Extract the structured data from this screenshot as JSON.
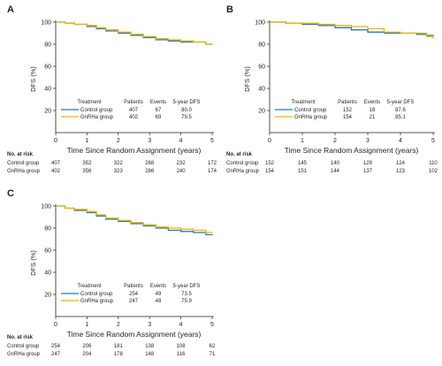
{
  "colors": {
    "control": "#2e75b6",
    "gnrha": "#e6b800",
    "axis": "#231f20"
  },
  "chart_data": [
    {
      "panel": "A",
      "type": "line",
      "xlabel": "Time Since Random Assignment (years)",
      "ylabel": "DFS (%)",
      "xlim": [
        0,
        5
      ],
      "ylim": [
        0,
        100
      ],
      "xticks": [
        "0",
        "1",
        "2",
        "3",
        "4",
        "5"
      ],
      "yticks": [
        "20",
        "40",
        "60",
        "80",
        "100"
      ],
      "legend": {
        "headers": [
          "Treatment",
          "Patients",
          "Events",
          "5-year DFS"
        ],
        "rows": [
          {
            "group": "Control group",
            "patients": "407",
            "events": "67",
            "dfs": "80.0"
          },
          {
            "group": "GnRHa group",
            "patients": "402",
            "events": "69",
            "dfs": "79.5"
          }
        ]
      },
      "series": [
        {
          "name": "Control group",
          "x": [
            0,
            0.3,
            0.6,
            1.0,
            1.3,
            1.6,
            2.0,
            2.4,
            2.8,
            3.2,
            3.6,
            4.0,
            4.4,
            4.8,
            5.0
          ],
          "y": [
            100,
            99,
            98,
            96,
            94,
            92,
            90,
            88,
            86,
            84,
            83,
            82,
            82,
            80,
            80
          ]
        },
        {
          "name": "GnRHa group",
          "x": [
            0,
            0.3,
            0.6,
            1.0,
            1.3,
            1.6,
            2.0,
            2.4,
            2.8,
            3.2,
            3.6,
            4.0,
            4.4,
            4.8,
            5.0
          ],
          "y": [
            100,
            99,
            98,
            97,
            95,
            93,
            91,
            89,
            87,
            85,
            84,
            83,
            82,
            80,
            79.5
          ]
        }
      ],
      "risk": {
        "title": "No. at risk",
        "rows": [
          {
            "label": "Control group",
            "values": [
              "407",
              "352",
              "322",
              "268",
              "232",
              "172"
            ]
          },
          {
            "label": "GnRHa group",
            "values": [
              "402",
              "356",
              "323",
              "286",
              "240",
              "174"
            ]
          }
        ]
      }
    },
    {
      "panel": "B",
      "type": "line",
      "xlabel": "Time Since Random Assignment (years)",
      "ylabel": "DFS (%)",
      "xlim": [
        0,
        5
      ],
      "ylim": [
        0,
        100
      ],
      "xticks": [
        "0",
        "1",
        "2",
        "3",
        "4",
        "5"
      ],
      "yticks": [
        "20",
        "40",
        "60",
        "80",
        "100"
      ],
      "legend": {
        "headers": [
          "Treatment",
          "Patients",
          "Events",
          "5-year DFS"
        ],
        "rows": [
          {
            "group": "Control group",
            "patients": "152",
            "events": "18",
            "dfs": "87.6"
          },
          {
            "group": "GnRHa group",
            "patients": "154",
            "events": "21",
            "dfs": "85.1"
          }
        ]
      },
      "series": [
        {
          "name": "Control group",
          "x": [
            0,
            0.5,
            1.0,
            1.5,
            2.0,
            2.5,
            3.0,
            3.5,
            4.0,
            4.5,
            4.8,
            5.0
          ],
          "y": [
            100,
            99,
            98,
            97,
            95,
            93,
            91,
            90,
            90,
            89,
            88,
            87.6
          ]
        },
        {
          "name": "GnRHa group",
          "x": [
            0,
            0.5,
            1.0,
            1.5,
            2.0,
            2.5,
            3.0,
            3.5,
            4.0,
            4.5,
            4.8,
            5.0
          ],
          "y": [
            100,
            99,
            99,
            98,
            97,
            96,
            94,
            91,
            90,
            90,
            87,
            85.1
          ]
        }
      ],
      "risk": {
        "title": "No. at risk",
        "rows": [
          {
            "label": "Control group",
            "values": [
              "152",
              "145",
              "140",
              "129",
              "124",
              "110"
            ]
          },
          {
            "label": "GnRHa group",
            "values": [
              "154",
              "151",
              "144",
              "137",
              "123",
              "102"
            ]
          }
        ]
      }
    },
    {
      "panel": "C",
      "type": "line",
      "xlabel": "Time Since Random Assignment (years)",
      "ylabel": "DFS (%)",
      "xlim": [
        0,
        5
      ],
      "ylim": [
        0,
        100
      ],
      "xticks": [
        "0",
        "1",
        "2",
        "3",
        "4",
        "5"
      ],
      "yticks": [
        "20",
        "40",
        "60",
        "80",
        "100"
      ],
      "legend": {
        "headers": [
          "Treatment",
          "Patients",
          "Events",
          "5-year DFS"
        ],
        "rows": [
          {
            "group": "Control group",
            "patients": "254",
            "events": "49",
            "dfs": "73.5"
          },
          {
            "group": "GnRHa group",
            "patients": "247",
            "events": "48",
            "dfs": "75.9"
          }
        ]
      },
      "series": [
        {
          "name": "Control group",
          "x": [
            0,
            0.3,
            0.6,
            1.0,
            1.3,
            1.6,
            2.0,
            2.4,
            2.8,
            3.2,
            3.6,
            4.0,
            4.4,
            4.8,
            5.0
          ],
          "y": [
            100,
            98,
            96,
            94,
            91,
            88,
            86,
            84,
            82,
            80,
            78,
            77,
            76,
            74,
            73.5
          ]
        },
        {
          "name": "GnRHa group",
          "x": [
            0,
            0.3,
            0.6,
            1.0,
            1.3,
            1.6,
            2.0,
            2.4,
            2.8,
            3.2,
            3.6,
            4.0,
            4.4,
            4.8,
            5.0
          ],
          "y": [
            100,
            98,
            97,
            95,
            92,
            89,
            87,
            85,
            83,
            81,
            80,
            79,
            78,
            76,
            75.9
          ]
        }
      ],
      "risk": {
        "title": "No. at risk",
        "rows": [
          {
            "label": "Control group",
            "values": [
              "254",
              "206",
              "181",
              "138",
              "108",
              "62"
            ]
          },
          {
            "label": "GnRHa group",
            "values": [
              "247",
              "204",
              "178",
              "148",
              "116",
              "71"
            ]
          }
        ]
      }
    }
  ]
}
